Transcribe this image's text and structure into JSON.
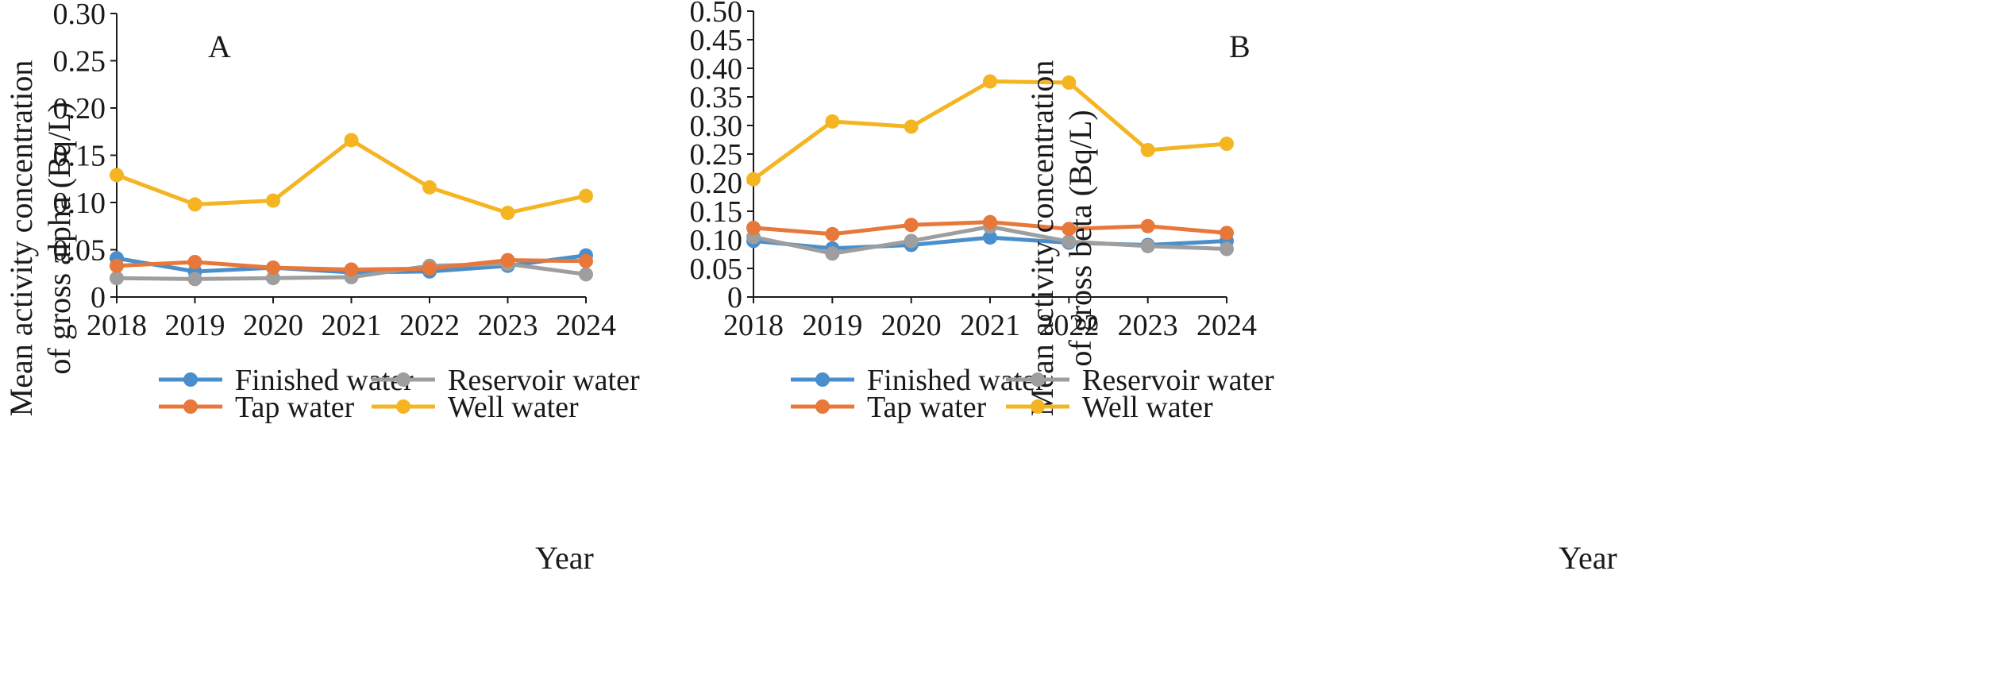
{
  "chart_data": [
    {
      "type": "line",
      "panel_label": "A",
      "xlabel": "Year",
      "ylabel_lines": [
        "Mean activity concentration",
        "of gross alpha (Bq/L)"
      ],
      "categories": [
        "2018",
        "2019",
        "2020",
        "2021",
        "2022",
        "2023",
        "2024"
      ],
      "ylim": [
        0,
        0.3
      ],
      "yticks": [
        "0",
        "0.05",
        "0.10",
        "0.15",
        "0.20",
        "0.25",
        "0.30"
      ],
      "grid": false,
      "legend_position": "bottom",
      "series": [
        {
          "name": "Finished water",
          "color": "#4a8fcb",
          "values": [
            0.041,
            0.027,
            0.031,
            0.026,
            0.027,
            0.033,
            0.044
          ]
        },
        {
          "name": "Reservoir water",
          "color": "#9e9e9e",
          "values": [
            0.02,
            0.019,
            0.02,
            0.021,
            0.033,
            0.035,
            0.024
          ]
        },
        {
          "name": "Tap water",
          "color": "#e8773a",
          "values": [
            0.033,
            0.037,
            0.031,
            0.029,
            0.03,
            0.039,
            0.038
          ]
        },
        {
          "name": "Well water",
          "color": "#f5b523",
          "values": [
            0.129,
            0.098,
            0.102,
            0.166,
            0.116,
            0.089,
            0.107
          ]
        }
      ]
    },
    {
      "type": "line",
      "panel_label": "B",
      "xlabel": "Year",
      "ylabel_lines": [
        "Mean activity concentration",
        "of gross beta (Bq/L)"
      ],
      "categories": [
        "2018",
        "2019",
        "2020",
        "2021",
        "2022",
        "2023",
        "2024"
      ],
      "ylim": [
        0,
        0.5
      ],
      "yticks": [
        "0",
        "0.05",
        "0.10",
        "0.15",
        "0.20",
        "0.25",
        "0.30",
        "0.35",
        "0.40",
        "0.45",
        "0.50"
      ],
      "grid": false,
      "legend_position": "bottom",
      "series": [
        {
          "name": "Finished water",
          "color": "#4a8fcb",
          "values": [
            0.098,
            0.085,
            0.091,
            0.104,
            0.095,
            0.091,
            0.098
          ]
        },
        {
          "name": "Reservoir water",
          "color": "#9e9e9e",
          "values": [
            0.105,
            0.076,
            0.098,
            0.123,
            0.097,
            0.089,
            0.084
          ]
        },
        {
          "name": "Tap water",
          "color": "#e8773a",
          "values": [
            0.121,
            0.11,
            0.126,
            0.131,
            0.119,
            0.124,
            0.112
          ]
        },
        {
          "name": "Well water",
          "color": "#f5b523",
          "values": [
            0.206,
            0.307,
            0.298,
            0.377,
            0.375,
            0.257,
            0.268
          ]
        }
      ]
    }
  ]
}
